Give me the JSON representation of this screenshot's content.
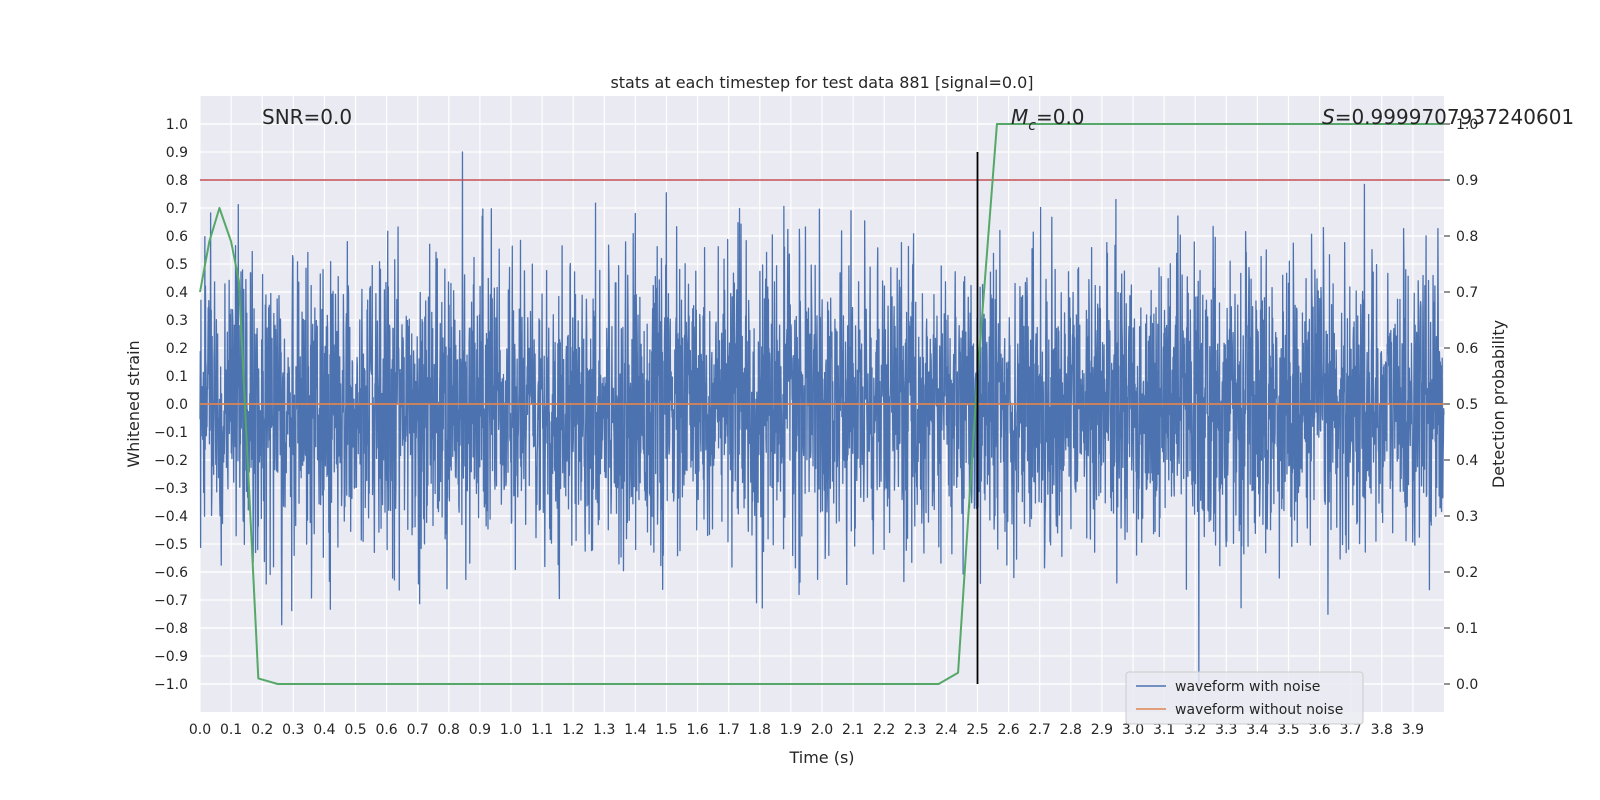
{
  "chart_data": {
    "type": "line",
    "title": "stats at each timestep for test data 881 [signal=0.0]",
    "xlabel": "Time (s)",
    "ylabel": "Whitened strain",
    "y2label": "Detection probability",
    "xlim": [
      0.0,
      4.0
    ],
    "ylim": [
      -1.1,
      1.1
    ],
    "y2lim": [
      -0.05,
      1.05
    ],
    "x_ticks": [
      "0.0",
      "0.1",
      "0.2",
      "0.3",
      "0.4",
      "0.5",
      "0.6",
      "0.7",
      "0.8",
      "0.9",
      "1.0",
      "1.1",
      "1.2",
      "1.3",
      "1.4",
      "1.5",
      "1.6",
      "1.7",
      "1.8",
      "1.9",
      "2.0",
      "2.1",
      "2.2",
      "2.3",
      "2.4",
      "2.5",
      "2.6",
      "2.7",
      "2.8",
      "2.9",
      "3.0",
      "3.1",
      "3.2",
      "3.3",
      "3.4",
      "3.5",
      "3.6",
      "3.7",
      "3.8",
      "3.9"
    ],
    "y_ticks": [
      "1.0",
      "0.9",
      "0.8",
      "0.7",
      "0.6",
      "0.5",
      "0.4",
      "0.3",
      "0.2",
      "0.1",
      "0.0",
      "−0.1",
      "−0.2",
      "−0.3",
      "−0.4",
      "−0.5",
      "−0.6",
      "−0.7",
      "−0.8",
      "−0.9",
      "−1.0"
    ],
    "y2_ticks": [
      "1.0",
      "0.9",
      "0.8",
      "0.7",
      "0.6",
      "0.5",
      "0.4",
      "0.3",
      "0.2",
      "0.1",
      "0.0"
    ],
    "grid": true,
    "legend_position": "lower-right",
    "annotations": {
      "snr": "SNR=0.0",
      "mc_symbol": "M",
      "mc_subscript": "c",
      "mc_value": "=0.0",
      "s_symbol": "S",
      "s_value": "=0.9999707937240601"
    },
    "threshold": {
      "y2": 0.9,
      "color": "#c44e52"
    },
    "vertical_marker": {
      "x": 2.5,
      "y_range": [
        -1.0,
        0.9
      ],
      "color": "#000000"
    },
    "series": [
      {
        "name": "waveform with noise",
        "color": "#4c72b0",
        "axis": "left",
        "description_range": [
          -1.0,
          0.9
        ]
      },
      {
        "name": "waveform without noise",
        "color": "#dd8452",
        "axis": "left",
        "x": [
          0.0,
          4.0
        ],
        "y": [
          0.0,
          0.0
        ]
      },
      {
        "color": "#55a868",
        "axis": "right",
        "x": [
          0.0,
          0.03,
          0.0625,
          0.1,
          0.125,
          0.1875,
          0.25,
          0.3125,
          0.5,
          1.0,
          1.5,
          2.0,
          2.3125,
          2.375,
          2.4375,
          2.5,
          2.5625,
          2.625,
          3.0,
          3.5,
          3.9,
          4.0
        ],
        "y": [
          0.7,
          0.79,
          0.85,
          0.79,
          0.72,
          0.01,
          0.0,
          0.0,
          0.0,
          0.0,
          0.0,
          0.0,
          0.0,
          0.0,
          0.02,
          0.55,
          1.0,
          1.0,
          1.0,
          1.0,
          1.0,
          1.0
        ]
      }
    ]
  }
}
